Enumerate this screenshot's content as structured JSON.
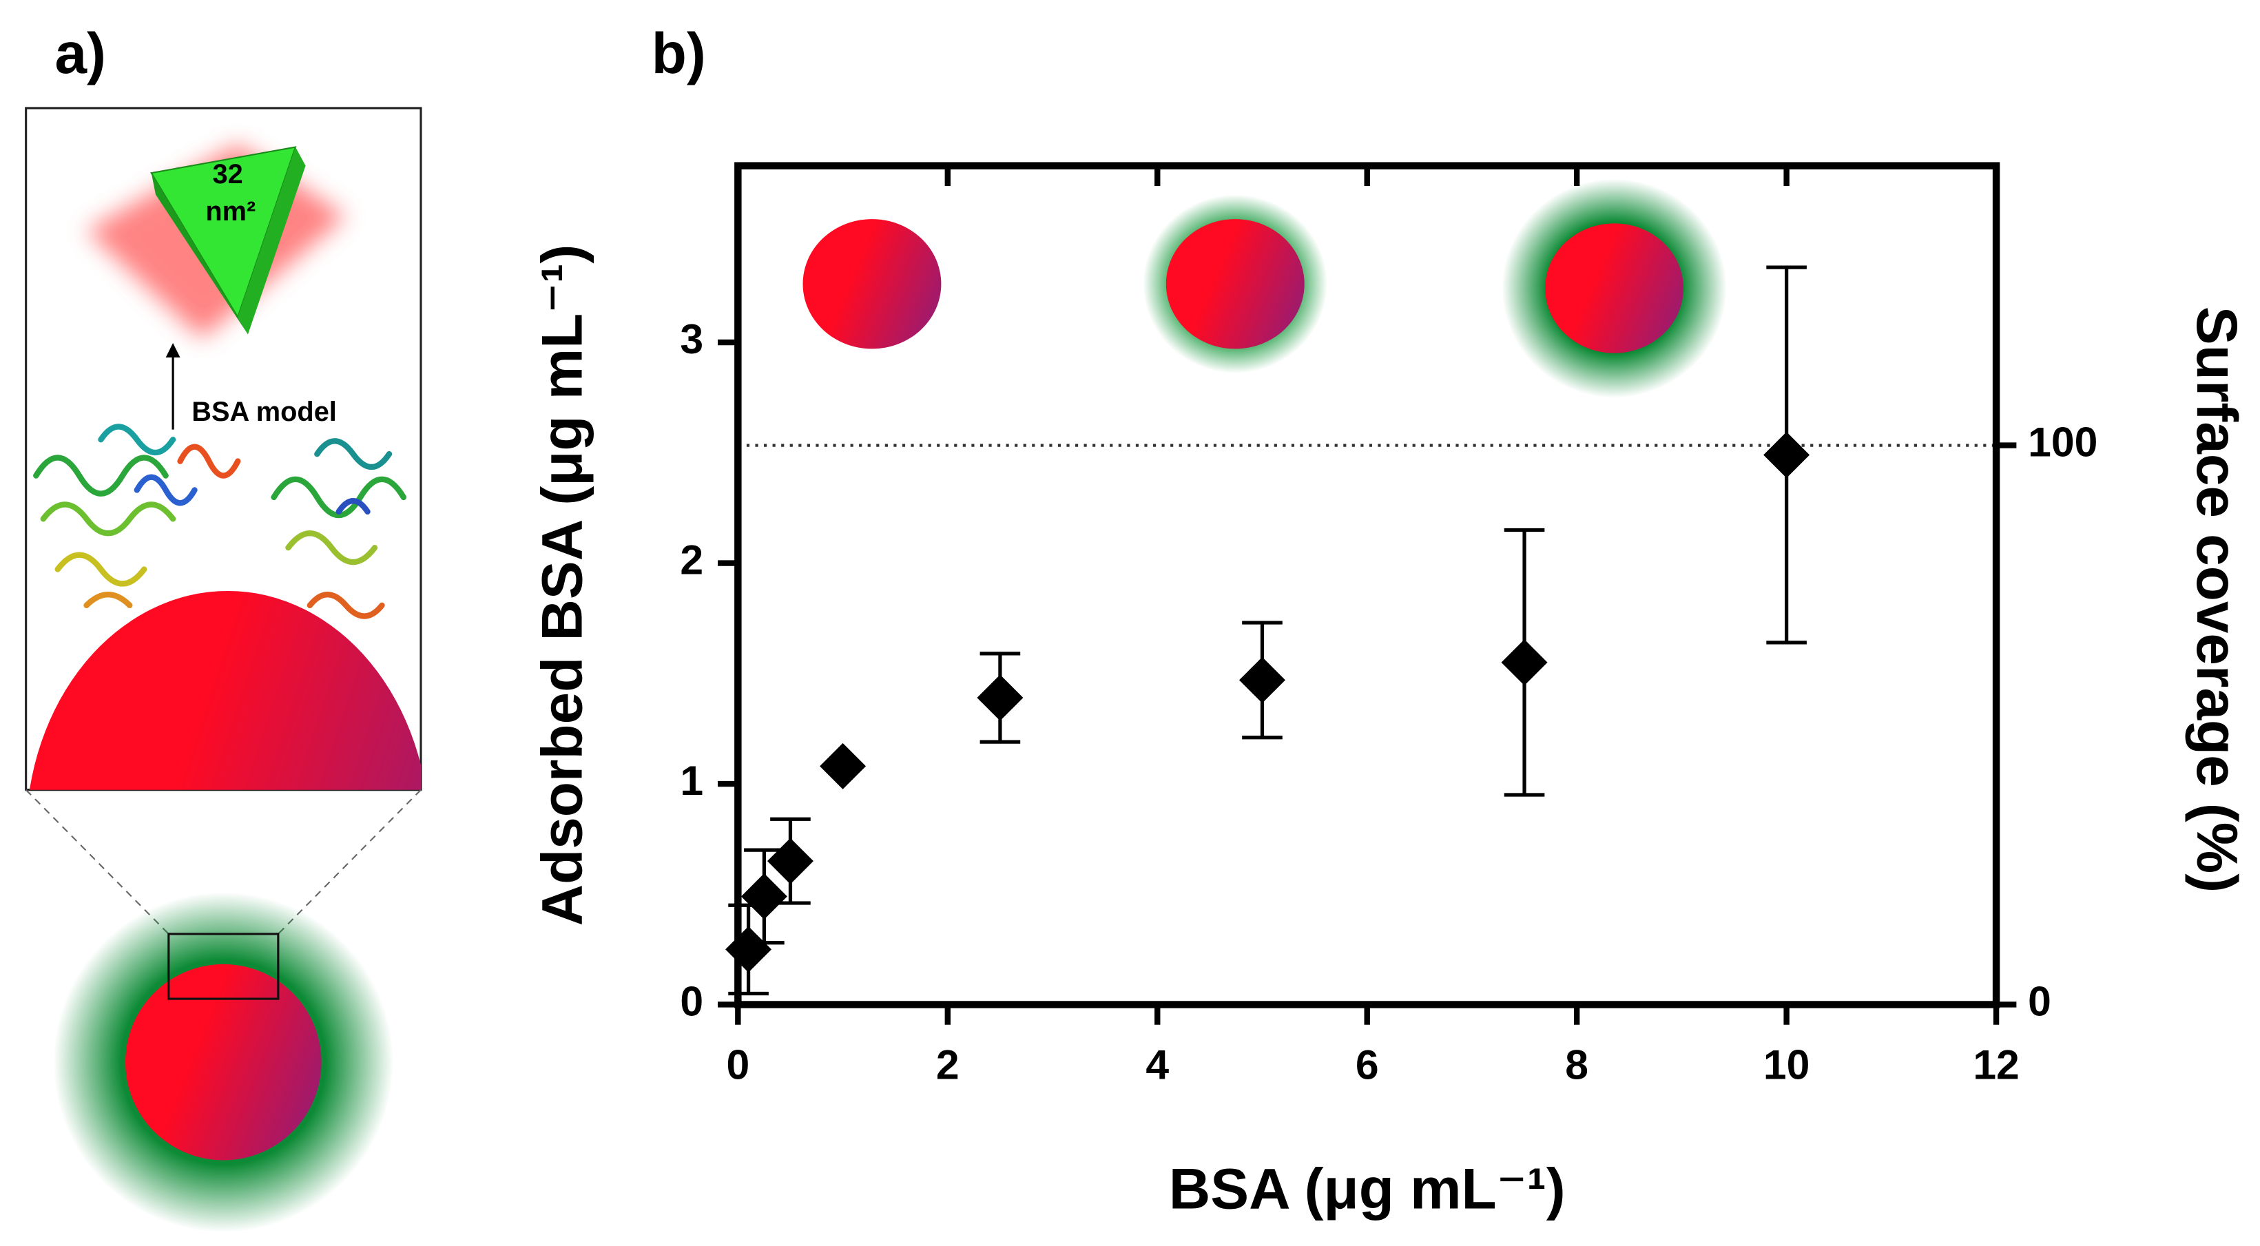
{
  "panel_labels": [
    "a)",
    "b)"
  ],
  "illustration": {
    "area_value": "32",
    "area_unit": "nm²",
    "model_label": "BSA model"
  },
  "chart_data": {
    "type": "scatter",
    "xlabel": "BSA (μg mL⁻¹)",
    "ylabel": "Adsorbed BSA (μg mL⁻¹)",
    "y2label": "Surface coverage (%)",
    "x": [
      0.1,
      0.25,
      0.5,
      1,
      2.5,
      5,
      7.5,
      10
    ],
    "series": [
      {
        "color": "#000000",
        "values": [
          0.25,
          0.49,
          0.65,
          1.08,
          1.39,
          1.47,
          1.55,
          2.49
        ],
        "errors": [
          0.2,
          0.21,
          0.19,
          0,
          0.2,
          0.26,
          0.6,
          0.85
        ]
      }
    ],
    "xlim": [
      0,
      12
    ],
    "xticks": [
      0,
      2,
      4,
      6,
      8,
      10,
      12
    ],
    "ylim": [
      0,
      3.8
    ],
    "yticks": [
      0,
      1,
      2,
      3
    ],
    "y2lim": [
      0,
      150
    ],
    "y2ticks": [
      0,
      100
    ],
    "reference_line": {
      "axis": "y2",
      "value": 100
    }
  }
}
